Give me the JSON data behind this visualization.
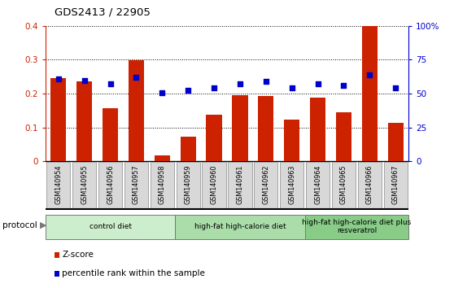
{
  "title": "GDS2413 / 22905",
  "samples": [
    "GSM140954",
    "GSM140955",
    "GSM140956",
    "GSM140957",
    "GSM140958",
    "GSM140959",
    "GSM140960",
    "GSM140961",
    "GSM140962",
    "GSM140963",
    "GSM140964",
    "GSM140965",
    "GSM140966",
    "GSM140967"
  ],
  "zscore": [
    0.245,
    0.235,
    0.158,
    0.298,
    0.018,
    0.072,
    0.138,
    0.195,
    0.193,
    0.123,
    0.188,
    0.144,
    0.4,
    0.114
  ],
  "percentile": [
    61,
    59.5,
    57.5,
    62,
    50.5,
    52.5,
    54.5,
    57.5,
    59,
    54,
    57,
    56,
    64,
    54.5
  ],
  "bar_color": "#cc2200",
  "dot_color": "#0000cc",
  "groups": [
    {
      "label": "control diet",
      "start": 0,
      "end": 4,
      "color": "#cceecc"
    },
    {
      "label": "high-fat high-calorie diet",
      "start": 5,
      "end": 9,
      "color": "#aaddaa"
    },
    {
      "label": "high-fat high-calorie diet plus\nresveratrol",
      "start": 10,
      "end": 13,
      "color": "#88cc88"
    }
  ],
  "protocol_label": "protocol",
  "ylim_left": [
    0,
    0.4
  ],
  "ylim_right": [
    0,
    100
  ],
  "yticks_left": [
    0,
    0.1,
    0.2,
    0.3,
    0.4
  ],
  "ytick_labels_left": [
    "0",
    "0.1",
    "0.2",
    "0.3",
    "0.4"
  ],
  "yticks_right": [
    0,
    25,
    50,
    75,
    100
  ],
  "ytick_labels_right": [
    "0",
    "25",
    "50",
    "75",
    "100%"
  ],
  "legend_zscore": "Z-score",
  "legend_percentile": "percentile rank within the sample",
  "background_color": "#ffffff",
  "tick_label_color_left": "#cc2200",
  "tick_label_color_right": "#0000cc",
  "xtick_bg_color": "#d8d8d8",
  "bar_width": 0.6
}
